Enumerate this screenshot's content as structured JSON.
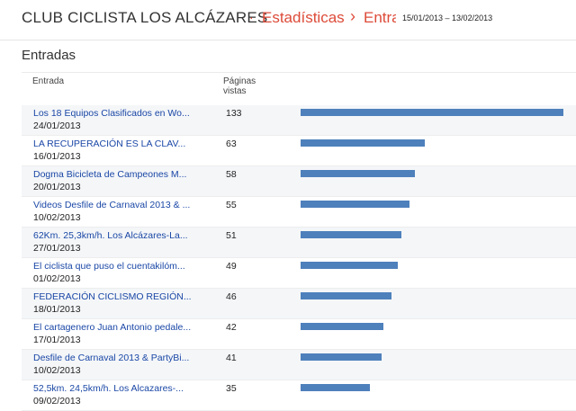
{
  "header": {
    "blog_title": "CLUB CICLISTA LOS ALCÁZARES",
    "separator1": "·",
    "crumb_stats": "Estadísticas",
    "separator2": "›",
    "crumb_entries": "Entra",
    "date_range": "15/01/2013 – 13/02/2013"
  },
  "section": {
    "title": "Entradas"
  },
  "table": {
    "col_entry": "Entrada",
    "col_views": "Páginas vistas",
    "max_views": 133,
    "rows": [
      {
        "title": "Los 18 Equipos Clasificados en Wo...",
        "date": "24/01/2013",
        "views": 133
      },
      {
        "title": "LA RECUPERACIÓN ES LA CLAV...",
        "date": "16/01/2013",
        "views": 63
      },
      {
        "title": "Dogma Bicicleta de Campeones M...",
        "date": "20/01/2013",
        "views": 58
      },
      {
        "title": "Videos Desfile de Carnaval 2013 & ...",
        "date": "10/02/2013",
        "views": 55
      },
      {
        "title": "62Km. 25,3km/h. Los Alcázares-La...",
        "date": "27/01/2013",
        "views": 51
      },
      {
        "title": "El ciclista que puso el cuentakilóm...",
        "date": "01/02/2013",
        "views": 49
      },
      {
        "title": "FEDERACIÓN CICLISMO REGIÓN...",
        "date": "18/01/2013",
        "views": 46
      },
      {
        "title": "El cartagenero Juan Antonio pedale...",
        "date": "17/01/2013",
        "views": 42
      },
      {
        "title": "Desfile de Carnaval 2013 & PartyBi...",
        "date": "10/02/2013",
        "views": 41
      },
      {
        "title": "52,5km. 24,5km/h. Los Alcazares-...",
        "date": "09/02/2013",
        "views": 35
      }
    ]
  },
  "colors": {
    "accent": "#dd4b39",
    "link": "#1a47a6",
    "bar": "#4e80bc"
  }
}
